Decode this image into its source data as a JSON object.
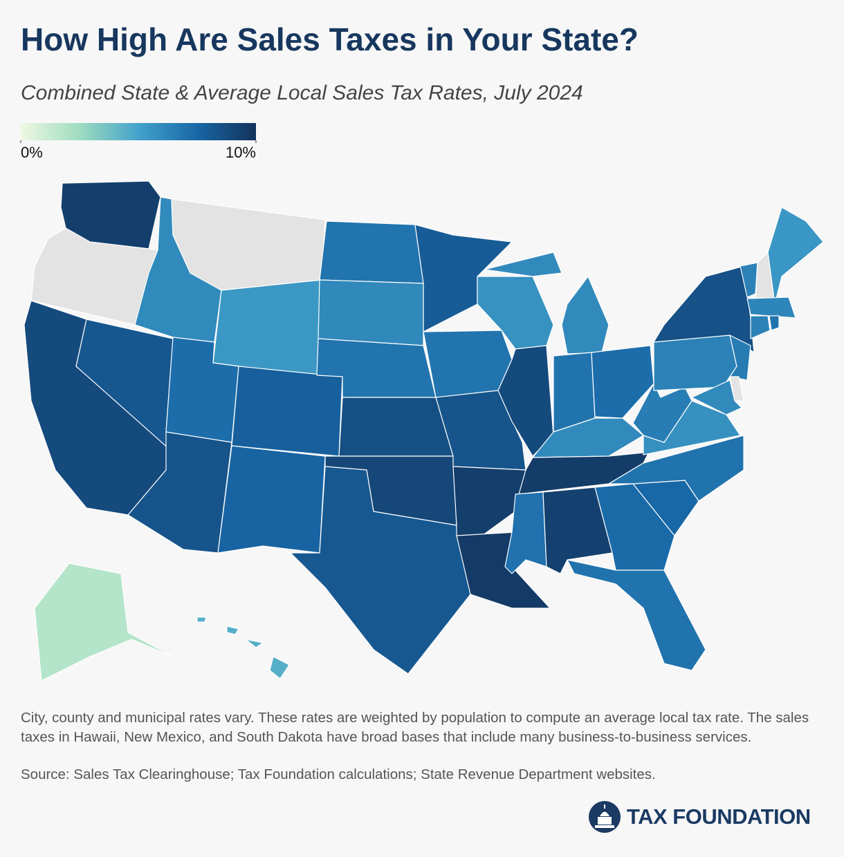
{
  "chart_data": {
    "type": "choropleth",
    "title": "How High Are Sales Taxes in Your State?",
    "subtitle": "Combined State & Average Local Sales Tax Rates, July 2024",
    "scale": {
      "range": [
        0,
        10
      ],
      "ticks": [
        {
          "value": 0,
          "label": "0%"
        },
        {
          "value": 10,
          "label": "10%"
        }
      ],
      "colors": [
        "#eef8e2",
        "#9fdcc0",
        "#43a2cb",
        "#1867a6",
        "#13325a"
      ],
      "zero_color": "#e3e3e3"
    },
    "values": [
      9.38,
      0,
      8.85,
      8.24,
      6.03,
      0,
      5.44,
      7.25,
      7.81,
      8.38,
      7.63,
      6.96,
      6.11,
      6.97,
      8.65,
      8.99,
      8.2,
      8.04,
      6.94,
      8.39,
      9.45,
      9.56,
      5.7,
      8.86,
      6.0,
      7.0,
      7.24,
      6.0,
      9.55,
      7.06,
      9.29,
      7.38,
      7.0,
      7.49,
      7.0,
      5.77,
      6.55,
      6.34,
      8.53,
      6.36,
      0,
      5.5,
      6.25,
      6.35,
      7.0,
      6.6,
      0,
      6.0,
      1.82,
      4.5
    ],
    "notes": "City, county and municipal rates vary. These rates are weighted by population to compute an average local tax rate. The sales taxes in Hawaii, New Mexico, and South Dakota have broad bases that include many business-to-business services.",
    "source": "Source: Sales Tax Clearinghouse; Tax Foundation calculations; State Revenue Department websites.",
    "logo": "TAX FOUNDATION"
  }
}
